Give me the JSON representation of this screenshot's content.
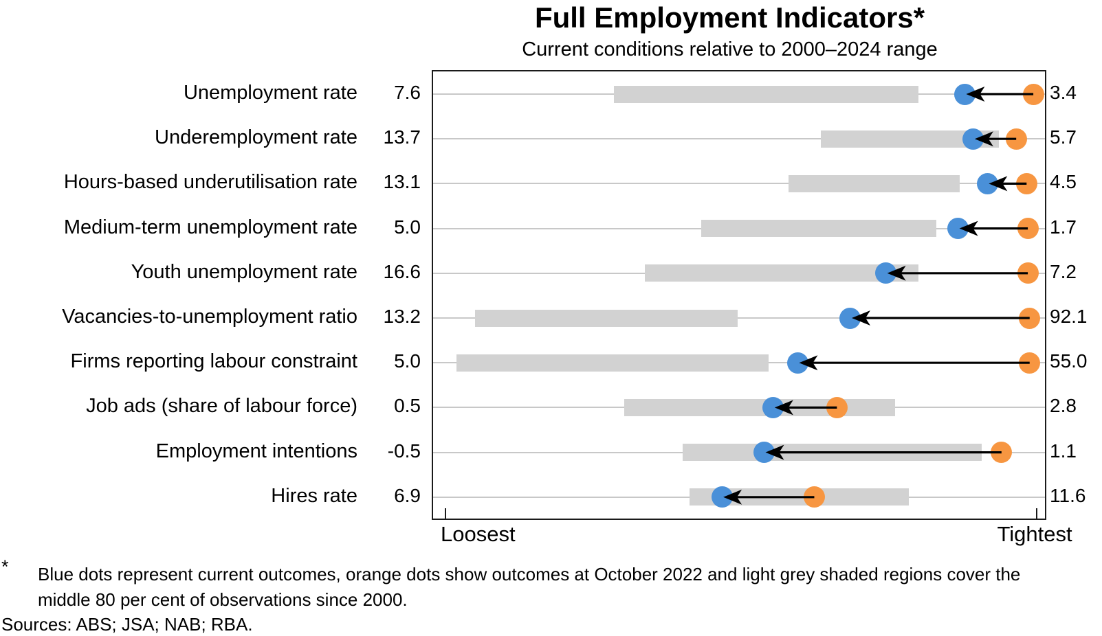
{
  "header": {
    "title": "Full Employment Indicators*",
    "subtitle": "Current conditions relative to 2000–2024 range"
  },
  "axis": {
    "left": "Loosest",
    "right": "Tightest"
  },
  "footnote": {
    "marker": "*",
    "text": "Blue dots represent current outcomes, orange dots show outcomes at October 2022 and light grey shaded regions cover the middle 80 per cent of observations since 2000."
  },
  "sources": "Sources: ABS; JSA; NAB; RBA.",
  "colors": {
    "current_dot": "#4a90d8",
    "oct2022_dot": "#f79641",
    "band": "#d2d2d2",
    "gridline": "#c8c8c8",
    "box_border": "#1a1a1a",
    "arrow": "#000000"
  },
  "chart_data": {
    "type": "dot-range",
    "title": "Full Employment Indicators*",
    "subtitle": "Current conditions relative to 2000–2024 range",
    "x_axis": {
      "left_label": "Loosest",
      "right_label": "Tightest",
      "scale_note": "positions given as per cent of axis width, 0 = loosest end of box, 100 = tightest end"
    },
    "legend": {
      "blue_dot": "Current outcomes",
      "orange_dot": "Outcomes at October 2022",
      "grey_band": "Middle 80 per cent of observations since 2000"
    },
    "rows": [
      {
        "label": "Unemployment rate",
        "loosest_value": "7.6",
        "tightest_value": "3.4",
        "band_pct": [
          29.6,
          79.3
        ],
        "current_pct": 86.9,
        "oct2022_pct": 98.1
      },
      {
        "label": "Underemployment rate",
        "loosest_value": "13.7",
        "tightest_value": "5.7",
        "band_pct": [
          63.4,
          92.5
        ],
        "current_pct": 88.3,
        "oct2022_pct": 95.3
      },
      {
        "label": "Hours-based underutilisation rate",
        "loosest_value": "13.1",
        "tightest_value": "4.5",
        "band_pct": [
          58.1,
          86.1
        ],
        "current_pct": 90.6,
        "oct2022_pct": 97.0
      },
      {
        "label": "Medium-term unemployment rate",
        "loosest_value": "5.0",
        "tightest_value": "1.7",
        "band_pct": [
          43.8,
          82.2
        ],
        "current_pct": 85.8,
        "oct2022_pct": 97.2
      },
      {
        "label": "Youth unemployment rate",
        "loosest_value": "16.6",
        "tightest_value": "7.2",
        "band_pct": [
          34.6,
          79.3
        ],
        "current_pct": 74.0,
        "oct2022_pct": 97.2
      },
      {
        "label": "Vacancies-to-unemployment ratio",
        "loosest_value": "13.2",
        "tightest_value": "92.1",
        "band_pct": [
          6.9,
          49.8
        ],
        "current_pct": 68.2,
        "oct2022_pct": 97.5
      },
      {
        "label": "Firms reporting labour constraint",
        "loosest_value": "5.0",
        "tightest_value": "55.0",
        "band_pct": [
          3.8,
          54.8
        ],
        "current_pct": 59.6,
        "oct2022_pct": 97.5
      },
      {
        "label": "Job ads (share of labour force)",
        "loosest_value": "0.5",
        "tightest_value": "2.8",
        "band_pct": [
          31.2,
          75.5
        ],
        "current_pct": 55.6,
        "oct2022_pct": 66.0
      },
      {
        "label": "Employment intentions",
        "loosest_value": "-0.5",
        "tightest_value": "1.1",
        "band_pct": [
          40.8,
          89.7
        ],
        "current_pct": 54.1,
        "oct2022_pct": 92.9
      },
      {
        "label": "Hires rate",
        "loosest_value": "6.9",
        "tightest_value": "11.6",
        "band_pct": [
          41.9,
          77.7
        ],
        "current_pct": 47.2,
        "oct2022_pct": 62.3
      }
    ],
    "layout_hints": {
      "grid": "horizontal per row",
      "ticks": "inward at loosest and tightest positions"
    }
  }
}
